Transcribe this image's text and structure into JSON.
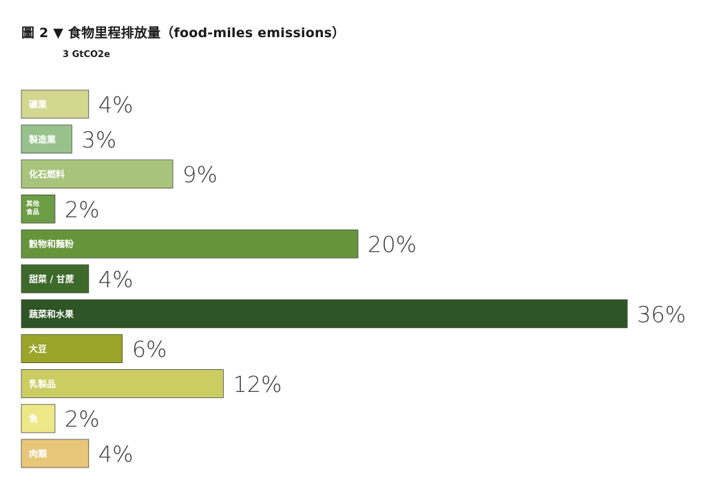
{
  "title": "圖 2 ▼ 食物里程排放量（food-miles emissions）",
  "subtitle": "3 GtCO2e",
  "chart_data": {
    "type": "bar",
    "orientation": "horizontal",
    "title": "圖 2 ▼ 食物里程排放量（food-miles emissions）",
    "subtitle": "3 GtCO2e",
    "xlabel": "",
    "ylabel": "",
    "categories": [
      "礦業",
      "製造業",
      "化石燃料",
      "其他食品",
      "穀物和麵粉",
      "甜菜／甘蔗",
      "蔬菜和水果",
      "大豆",
      "乳製品",
      "魚",
      "肉類"
    ],
    "display_labels": [
      "礦業",
      "製造業",
      "化石燃料",
      "其他\n食品",
      "穀物和麵粉",
      "甜菜 / 甘蔗",
      "蔬菜和水果",
      "大豆",
      "乳製品",
      "魚",
      "肉類"
    ],
    "values": [
      4,
      3,
      9,
      2,
      20,
      4,
      36,
      6,
      12,
      2,
      4
    ],
    "value_labels": [
      "4%",
      "3%",
      "9%",
      "2%",
      "20%",
      "4%",
      "36%",
      "6%",
      "12%",
      "2%",
      "4%"
    ],
    "unit": "%",
    "colors": [
      "#d3d78f",
      "#98c28c",
      "#a8c47c",
      "#6b9d45",
      "#66943a",
      "#3d6a2b",
      "#2e5525",
      "#9aa52a",
      "#cbcd63",
      "#ece888",
      "#e7c779"
    ],
    "label_colors": [
      "#ffffff",
      "#ffffff",
      "#ffffff",
      "#ffffff",
      "#ffffff",
      "#ffffff",
      "#ffffff",
      "#ffffff",
      "#ffffff",
      "#ffffff",
      "#ffffff"
    ],
    "grid": false,
    "legend": "none"
  }
}
